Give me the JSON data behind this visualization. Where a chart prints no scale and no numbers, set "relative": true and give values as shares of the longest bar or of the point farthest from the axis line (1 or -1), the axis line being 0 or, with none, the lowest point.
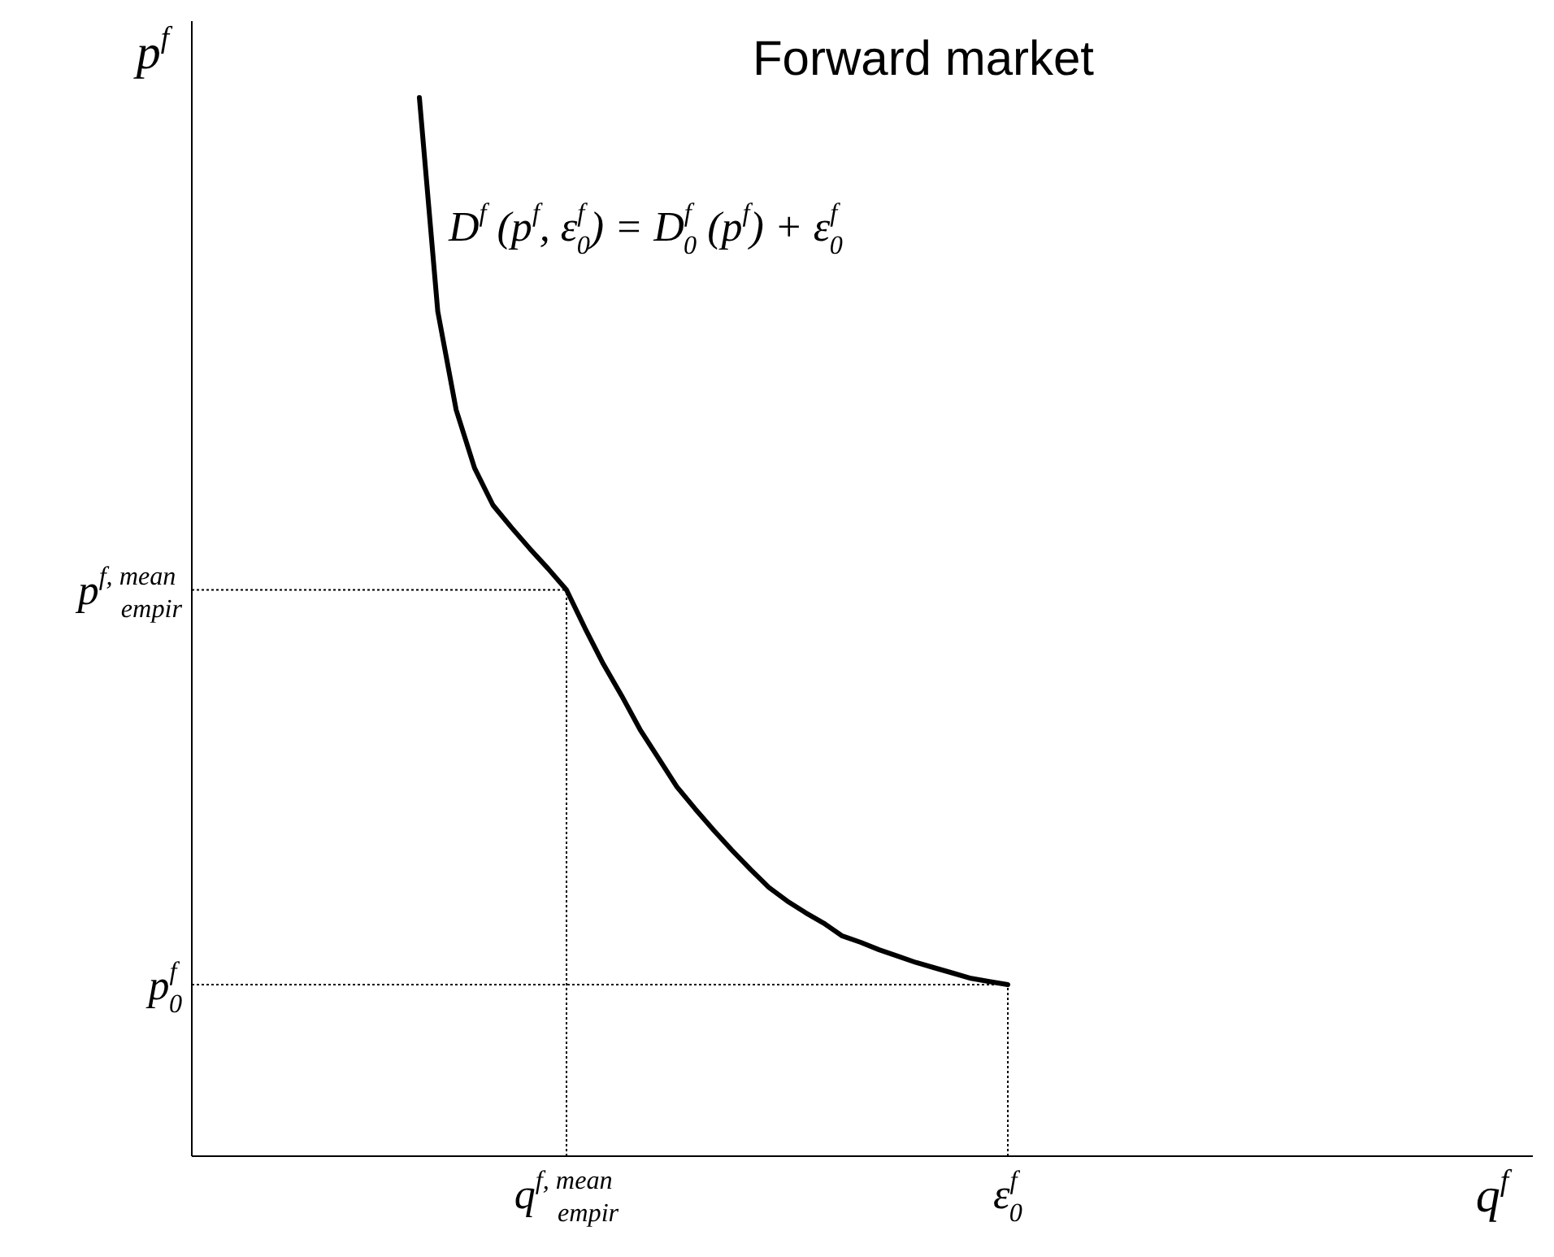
{
  "chart_data": {
    "type": "line",
    "title": "Forward market",
    "ylabel": "p$^{f}$",
    "relative": true,
    "marker": "none",
    "line_style": "solid",
    "categories": [
      null,
      null,
      null,
      null,
      null,
      null,
      null,
      null,
      "q$^{f, mean}$$_{empir}$",
      null,
      null,
      null,
      null,
      null,
      null,
      null,
      null,
      null,
      null,
      null,
      null,
      null,
      null,
      null,
      null,
      null,
      null,
      null,
      null,
      null,
      null,
      null,
      "ε$^{f}$$_{0}$"
    ],
    "series": [
      {
        "color": "#000000",
        "values": [
          1.0,
          0.798,
          0.705,
          0.65,
          0.615,
          0.594,
          0.574,
          0.555,
          0.535,
          0.499,
          0.465,
          0.435,
          0.403,
          0.376,
          0.349,
          0.328,
          0.308,
          0.289,
          0.271,
          0.254,
          0.241,
          0.23,
          0.22,
          0.208,
          0.202,
          0.195,
          0.189,
          0.183,
          0.178,
          0.173,
          0.168,
          0.165,
          0.162
        ]
      }
    ],
    "ref_lines": [
      {
        "axis": "y",
        "value": 0.535,
        "label": "p$^{f, mean}$$_{empir}$",
        "line_style": "dotted"
      },
      {
        "axis": "y",
        "value": 0.162,
        "label": "p$^{f}$$_{0}$",
        "line_style": "dotted"
      },
      {
        "axis": "x",
        "value": "q$^{f, mean}$$_{empir}$",
        "line_style": "dotted"
      },
      {
        "axis": "x",
        "value": "ε$^{f}$$_{0}$",
        "line_style": "dotted"
      }
    ],
    "annotations": [
      "D$^{f}$ (p$^{f}$, ε$^{f}$$_{0}$) = D$^{f}$$_{0}$ (p$^{f}$) + ε$^{f}$$_{0}$",
      "q$^{f}$"
    ]
  }
}
